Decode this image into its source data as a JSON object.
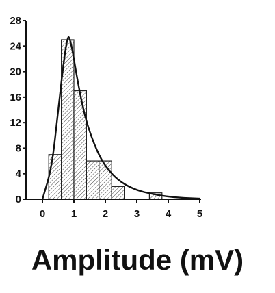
{
  "chart_data": {
    "type": "bar",
    "title": "",
    "xlabel": "Amplitude (mV)",
    "ylabel": "",
    "xlim": [
      0,
      5
    ],
    "ylim": [
      0,
      28
    ],
    "x_ticks": [
      0,
      1,
      2,
      3,
      4,
      5
    ],
    "y_ticks": [
      0,
      4,
      8,
      12,
      16,
      20,
      24,
      28
    ],
    "grid": false,
    "bin_width": 0.4,
    "bins": [
      {
        "start": 0.2,
        "count": 7
      },
      {
        "start": 0.6,
        "count": 25
      },
      {
        "start": 1.0,
        "count": 17
      },
      {
        "start": 1.4,
        "count": 6
      },
      {
        "start": 1.8,
        "count": 6
      },
      {
        "start": 2.2,
        "count": 2
      },
      {
        "start": 3.4,
        "count": 1
      }
    ],
    "fit_curve": {
      "x": [
        0,
        0.3,
        0.5,
        0.7,
        0.8,
        0.85,
        0.95,
        1.1,
        1.3,
        1.5,
        1.8,
        2.1,
        2.5,
        3.0,
        3.5,
        4.0,
        4.5,
        5.0
      ],
      "y": [
        0,
        5,
        14,
        22.5,
        25.3,
        25.5,
        23.5,
        19,
        14,
        10.5,
        6.8,
        4.5,
        2.6,
        1.4,
        0.8,
        0.4,
        0.2,
        0.1
      ]
    },
    "bar_fill": "#ffffff",
    "hatch_color": "#444444",
    "line_color": "#111111"
  }
}
